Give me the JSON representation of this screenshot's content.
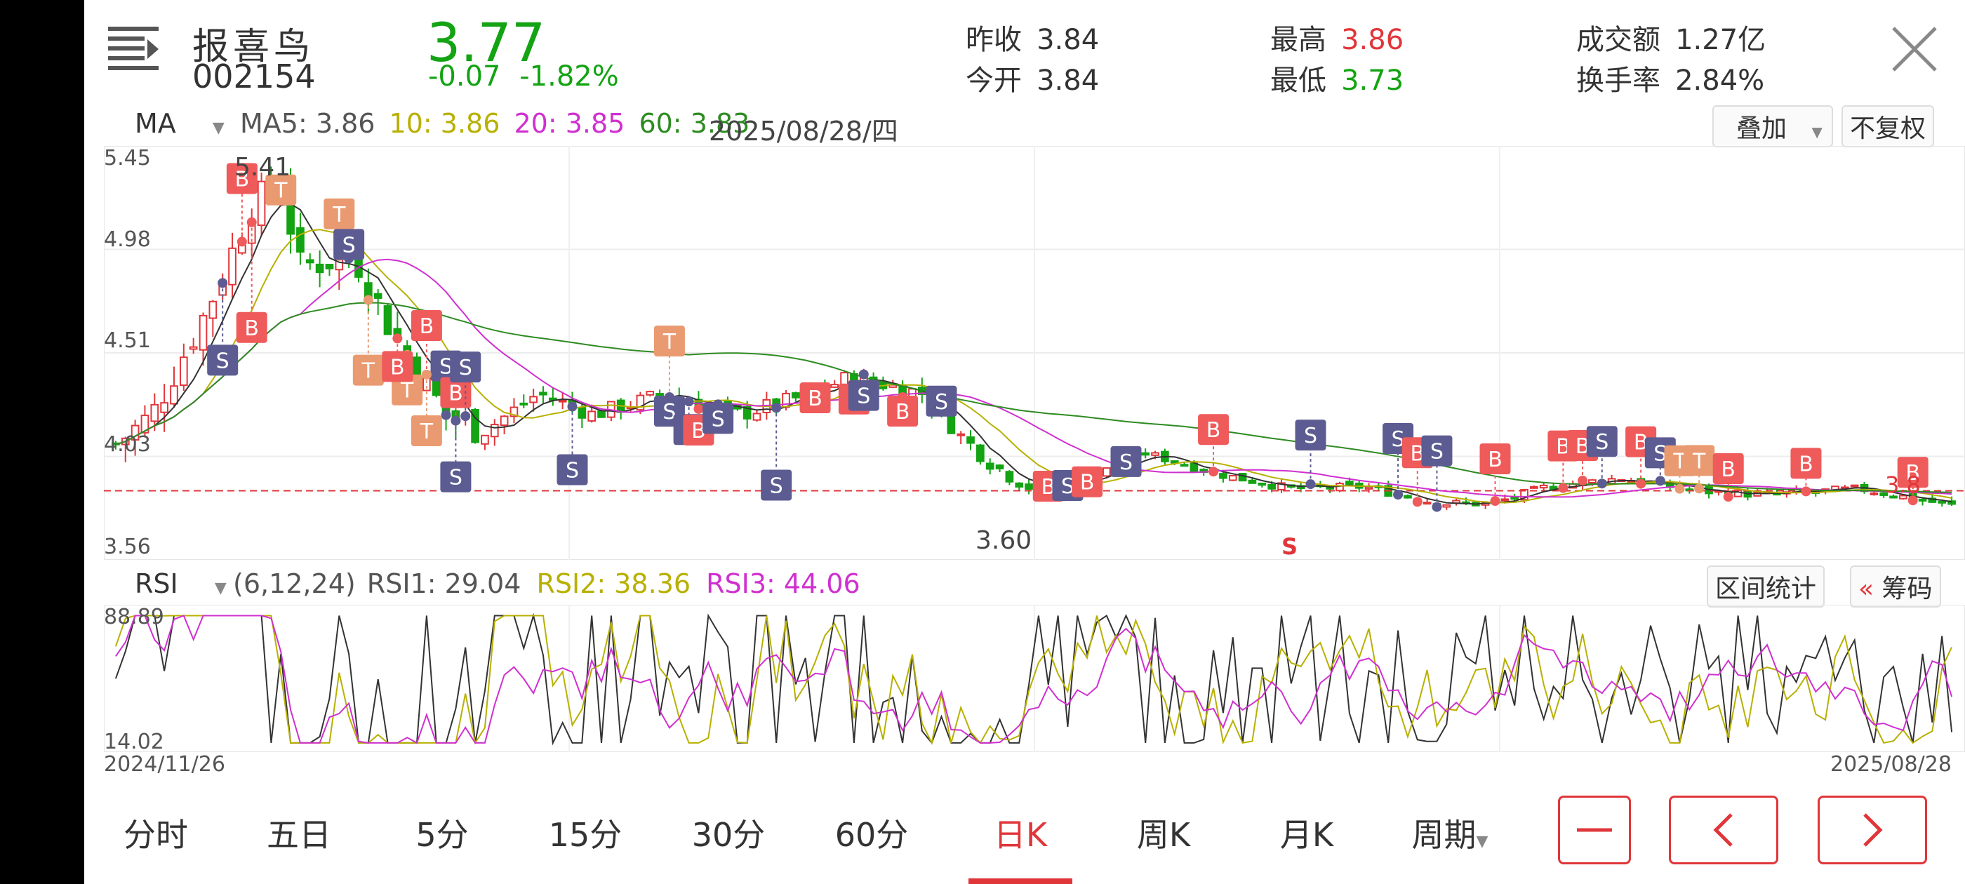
{
  "header": {
    "name": "报喜鸟",
    "code": "002154",
    "price": "3.77",
    "change": "-0.07",
    "change_pct": "-1.82%",
    "prev_close_label": "昨收",
    "prev_close": "3.84",
    "open_label": "今开",
    "open": "3.84",
    "high_label": "最高",
    "high": "3.86",
    "low_label": "最低",
    "low": "3.73",
    "turnover_label": "成交额",
    "turnover": "1.27亿",
    "turnover_rate_label": "换手率",
    "turnover_rate": "2.84%"
  },
  "ma_bar": {
    "selector": "MA",
    "ma5": "MA5: 3.86",
    "ma10": "10: 3.86",
    "ma20": "20: 3.85",
    "ma60": "60: 3.83",
    "date": "2025/08/28/四",
    "overlay_btn": "叠加",
    "adjust_btn": "不复权"
  },
  "kline": {
    "y_labels": [
      "5.45",
      "4.98",
      "4.51",
      "4.03",
      "3.56"
    ],
    "max_label": "5.41",
    "min_label": "3.60",
    "last_price_label": "3.8",
    "bottom_s_label": "S"
  },
  "rsi_bar": {
    "selector": "RSI",
    "params": "(6,12,24)",
    "rsi1": "RSI1: 29.04",
    "rsi2": "RSI2: 38.36",
    "rsi3": "RSI3: 44.06",
    "range_btn": "区间统计",
    "chip_btn": "筹码",
    "chip_icon": "«"
  },
  "rsi": {
    "top_label": "88.89",
    "bottom_label": "14.02",
    "start_date": "2024/11/26",
    "end_date": "2025/08/28"
  },
  "tabs": [
    "分时",
    "五日",
    "5分",
    "15分",
    "30分",
    "60分",
    "日K",
    "周K",
    "月K",
    "周期"
  ],
  "active_tab": "日K",
  "icons": {
    "menu": "menu-icon",
    "close": "close-icon",
    "zoom_out": "minus-icon",
    "prev": "chevron-left-icon",
    "next": "chevron-right-icon",
    "dropdown": "caret-down-icon"
  },
  "colors": {
    "up": "#e0363a",
    "down": "#13a313",
    "ma5": "#333333",
    "ma10": "#b8b000",
    "ma20": "#d030d0",
    "ma60": "#2e8b22",
    "b_signal": "#ef5a5a",
    "s_signal": "#5c5c92",
    "t_signal": "#ea9a70"
  }
}
